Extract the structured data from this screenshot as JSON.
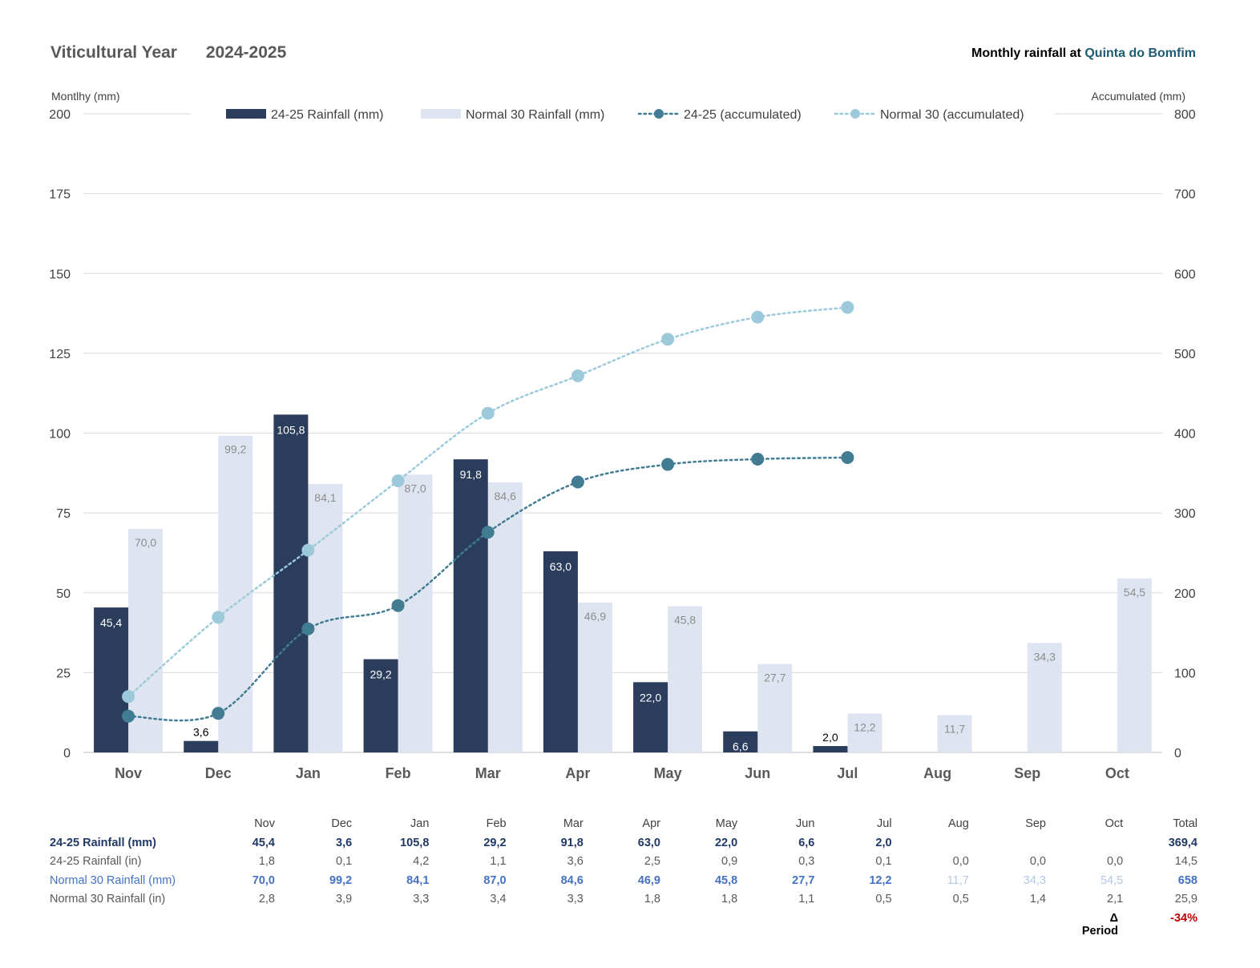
{
  "header": {
    "title": "Viticultural Year",
    "period": "2024-2025",
    "right_prefix": "Monthly rainfall at",
    "right_location": "Quinta do Bomfim"
  },
  "colors": {
    "bar_2425": "#2b3d5c",
    "bar_normal": "#dfe5f0",
    "line_2425": "#417c93",
    "line_normal": "#9dcadb",
    "delta": "#c00000"
  },
  "chart_data": {
    "type": "bar",
    "combo": "bar+line (dual y-axis)",
    "categories": [
      "Nov",
      "Dec",
      "Jan",
      "Feb",
      "Mar",
      "Apr",
      "May",
      "Jun",
      "Jul",
      "Aug",
      "Sep",
      "Oct"
    ],
    "ylabel": "Montlhy (mm)",
    "y2label": "Accumulated (mm)",
    "ylim": [
      0,
      200
    ],
    "y2lim": [
      0,
      800
    ],
    "yticks": [
      0,
      25,
      50,
      75,
      100,
      125,
      150,
      175,
      200
    ],
    "y2ticks": [
      0,
      100,
      200,
      300,
      400,
      500,
      600,
      700,
      800
    ],
    "grid": true,
    "legend_position": "top",
    "series": [
      {
        "name": "24-25  Rainfall (mm)",
        "kind": "bar",
        "axis": "left",
        "values": [
          45.4,
          3.6,
          105.8,
          29.2,
          91.8,
          63.0,
          22.0,
          6.6,
          2.0,
          null,
          null,
          null
        ],
        "labels": [
          "45,4",
          "3,6",
          "105,8",
          "29,2",
          "91,8",
          "63,0",
          "22,0",
          "6,6",
          "2,0",
          "",
          "",
          ""
        ]
      },
      {
        "name": "Normal 30 Rainfall (mm)",
        "kind": "bar",
        "axis": "left",
        "values": [
          70.0,
          99.2,
          84.1,
          87.0,
          84.6,
          46.9,
          45.8,
          27.7,
          12.2,
          11.7,
          34.3,
          54.5
        ],
        "labels": [
          "70,0",
          "99,2",
          "84,1",
          "87,0",
          "84,6",
          "46,9",
          "45,8",
          "27,7",
          "12,2",
          "11,7",
          "34,3",
          "54,5"
        ]
      },
      {
        "name": "24-25 (accumulated)",
        "kind": "line",
        "axis": "right",
        "values": [
          45.4,
          49.0,
          154.8,
          184.0,
          275.8,
          338.8,
          360.8,
          367.4,
          369.4,
          null,
          null,
          null
        ]
      },
      {
        "name": "Normal 30 (accumulated)",
        "kind": "line",
        "axis": "right",
        "values": [
          70.0,
          169.2,
          253.3,
          340.3,
          424.9,
          471.8,
          517.6,
          545.3,
          557.5,
          null,
          null,
          null
        ]
      }
    ]
  },
  "table": {
    "months": [
      "Nov",
      "Dec",
      "Jan",
      "Feb",
      "Mar",
      "Apr",
      "May",
      "Jun",
      "Jul",
      "Aug",
      "Sep",
      "Oct"
    ],
    "total_header": "Total",
    "rows": [
      {
        "label": "24-25  Rainfall (mm)",
        "values": [
          "45,4",
          "3,6",
          "105,8",
          "29,2",
          "91,8",
          "63,0",
          "22,0",
          "6,6",
          "2,0",
          "",
          "",
          ""
        ],
        "total": "369,4"
      },
      {
        "label": "24-25  Rainfall (in)",
        "values": [
          "1,8",
          "0,1",
          "4,2",
          "1,1",
          "3,6",
          "2,5",
          "0,9",
          "0,3",
          "0,1",
          "0,0",
          "0,0",
          "0,0"
        ],
        "total": "14,5"
      },
      {
        "label": "Normal 30 Rainfall (mm)",
        "values": [
          "70,0",
          "99,2",
          "84,1",
          "87,0",
          "84,6",
          "46,9",
          "45,8",
          "27,7",
          "12,2",
          "11,7",
          "34,3",
          "54,5"
        ],
        "total": "658"
      },
      {
        "label": "Normal 30 Rainfall (in)",
        "values": [
          "2,8",
          "3,9",
          "3,3",
          "3,4",
          "3,3",
          "1,8",
          "1,8",
          "1,1",
          "0,5",
          "0,5",
          "1,4",
          "2,1"
        ],
        "total": "25,9"
      }
    ],
    "delta_label": "Δ Period",
    "delta_value": "-34%"
  }
}
